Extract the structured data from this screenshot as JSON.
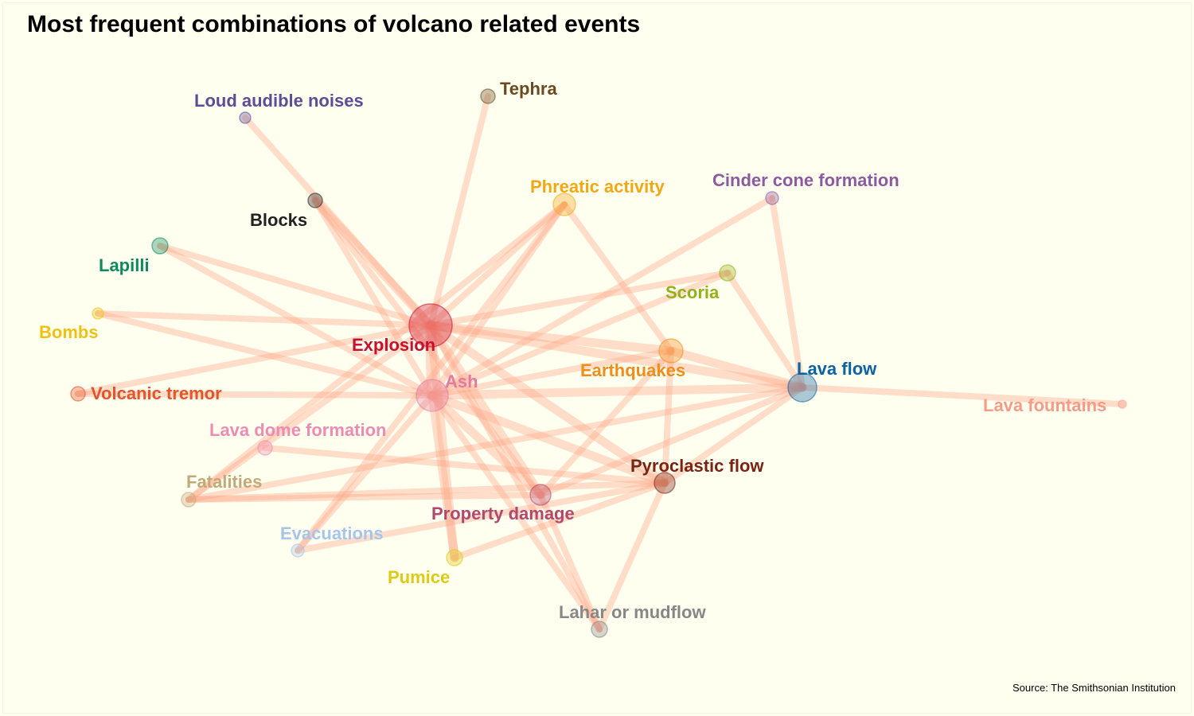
{
  "title": "Most frequent combinations of volcano related events",
  "source": "Source: The Smithsonian Institution",
  "link_color": "#ffa586",
  "nodes": [
    {
      "id": "explosion",
      "label": "Explosion",
      "color": "#c8102e"
    },
    {
      "id": "ash",
      "label": "Ash",
      "color": "#e07ba1"
    },
    {
      "id": "lava-flow",
      "label": "Lava flow",
      "color": "#0b63a4"
    },
    {
      "id": "earthquakes",
      "label": "Earthquakes",
      "color": "#f28c1b"
    },
    {
      "id": "pyroclastic-flow",
      "label": "Pyroclastic flow",
      "color": "#7a2414"
    },
    {
      "id": "property-damage",
      "label": "Property damage",
      "color": "#b2486e"
    },
    {
      "id": "phreatic-activity",
      "label": "Phreatic activity",
      "color": "#f2a716"
    },
    {
      "id": "tephra",
      "label": "Tephra",
      "color": "#6b4a22"
    },
    {
      "id": "loud-audible-noises",
      "label": "Loud audible noises",
      "color": "#5e4c99"
    },
    {
      "id": "blocks",
      "label": "Blocks",
      "color": "#222222"
    },
    {
      "id": "lapilli",
      "label": "Lapilli",
      "color": "#0e8a5f"
    },
    {
      "id": "bombs",
      "label": "Bombs",
      "color": "#eec212"
    },
    {
      "id": "volcanic-tremor",
      "label": "Volcanic tremor",
      "color": "#e6542a"
    },
    {
      "id": "lava-dome-formation",
      "label": "Lava dome formation",
      "color": "#ec8cb2"
    },
    {
      "id": "fatalities",
      "label": "Fatalities",
      "color": "#c2a97a"
    },
    {
      "id": "evacuations",
      "label": "Evacuations",
      "color": "#a5c5ea"
    },
    {
      "id": "pumice",
      "label": "Pumice",
      "color": "#dccb13"
    },
    {
      "id": "lahar-or-mudflow",
      "label": "Lahar or mudflow",
      "color": "#878787"
    },
    {
      "id": "cinder-cone-formation",
      "label": "Cinder cone formation",
      "color": "#8c5aa0"
    },
    {
      "id": "scoria",
      "label": "Scoria",
      "color": "#93b11b"
    },
    {
      "id": "lava-fountains",
      "label": "Lava fountains",
      "color": "#f79b89"
    }
  ],
  "edges": [
    {
      "source": "explosion",
      "target": "ash",
      "strength": 3
    },
    {
      "source": "explosion",
      "target": "lava-flow",
      "strength": 2
    },
    {
      "source": "explosion",
      "target": "earthquakes",
      "strength": 2
    },
    {
      "source": "explosion",
      "target": "pyroclastic-flow",
      "strength": 2
    },
    {
      "source": "explosion",
      "target": "property-damage",
      "strength": 2
    },
    {
      "source": "explosion",
      "target": "tephra",
      "strength": 1
    },
    {
      "source": "explosion",
      "target": "loud-audible-noises",
      "strength": 1
    },
    {
      "source": "explosion",
      "target": "blocks",
      "strength": 2
    },
    {
      "source": "explosion",
      "target": "lapilli",
      "strength": 1
    },
    {
      "source": "explosion",
      "target": "bombs",
      "strength": 1
    },
    {
      "source": "explosion",
      "target": "phreatic-activity",
      "strength": 1
    },
    {
      "source": "explosion",
      "target": "pumice",
      "strength": 2
    },
    {
      "source": "explosion",
      "target": "lahar-or-mudflow",
      "strength": 1
    },
    {
      "source": "explosion",
      "target": "scoria",
      "strength": 1
    },
    {
      "source": "explosion",
      "target": "volcanic-tremor",
      "strength": 1
    },
    {
      "source": "explosion",
      "target": "fatalities",
      "strength": 1
    },
    {
      "source": "ash",
      "target": "lava-flow",
      "strength": 2
    },
    {
      "source": "ash",
      "target": "earthquakes",
      "strength": 1
    },
    {
      "source": "ash",
      "target": "pyroclastic-flow",
      "strength": 2
    },
    {
      "source": "ash",
      "target": "property-damage",
      "strength": 2
    },
    {
      "source": "ash",
      "target": "phreatic-activity",
      "strength": 1
    },
    {
      "source": "ash",
      "target": "blocks",
      "strength": 1
    },
    {
      "source": "ash",
      "target": "lapilli",
      "strength": 1
    },
    {
      "source": "ash",
      "target": "bombs",
      "strength": 1
    },
    {
      "source": "ash",
      "target": "volcanic-tremor",
      "strength": 1
    },
    {
      "source": "ash",
      "target": "cinder-cone-formation",
      "strength": 1
    },
    {
      "source": "ash",
      "target": "scoria",
      "strength": 1
    },
    {
      "source": "ash",
      "target": "pumice",
      "strength": 2
    },
    {
      "source": "ash",
      "target": "evacuations",
      "strength": 1
    },
    {
      "source": "ash",
      "target": "lahar-or-mudflow",
      "strength": 1
    },
    {
      "source": "earthquakes",
      "target": "lava-flow",
      "strength": 2
    },
    {
      "source": "earthquakes",
      "target": "pyroclastic-flow",
      "strength": 1
    },
    {
      "source": "earthquakes",
      "target": "phreatic-activity",
      "strength": 1
    },
    {
      "source": "earthquakes",
      "target": "property-damage",
      "strength": 1
    },
    {
      "source": "lava-flow",
      "target": "pyroclastic-flow",
      "strength": 1
    },
    {
      "source": "lava-flow",
      "target": "property-damage",
      "strength": 1
    },
    {
      "source": "lava-flow",
      "target": "lava-fountains",
      "strength": 1
    },
    {
      "source": "lava-flow",
      "target": "cinder-cone-formation",
      "strength": 1
    },
    {
      "source": "lava-flow",
      "target": "scoria",
      "strength": 1
    },
    {
      "source": "lava-flow",
      "target": "fatalities",
      "strength": 1
    },
    {
      "source": "pyroclastic-flow",
      "target": "lava-dome-formation",
      "strength": 1
    },
    {
      "source": "pyroclastic-flow",
      "target": "evacuations",
      "strength": 1
    },
    {
      "source": "pyroclastic-flow",
      "target": "pumice",
      "strength": 1
    },
    {
      "source": "pyroclastic-flow",
      "target": "lahar-or-mudflow",
      "strength": 1
    },
    {
      "source": "pyroclastic-flow",
      "target": "fatalities",
      "strength": 1
    },
    {
      "source": "property-damage",
      "target": "fatalities",
      "strength": 1
    },
    {
      "source": "property-damage",
      "target": "lahar-or-mudflow",
      "strength": 1
    },
    {
      "source": "phreatic-activity",
      "target": "fatalities",
      "strength": 1
    },
    {
      "source": "phreatic-activity",
      "target": "evacuations",
      "strength": 1
    },
    {
      "source": "blocks",
      "target": "property-damage",
      "strength": 1
    }
  ]
}
